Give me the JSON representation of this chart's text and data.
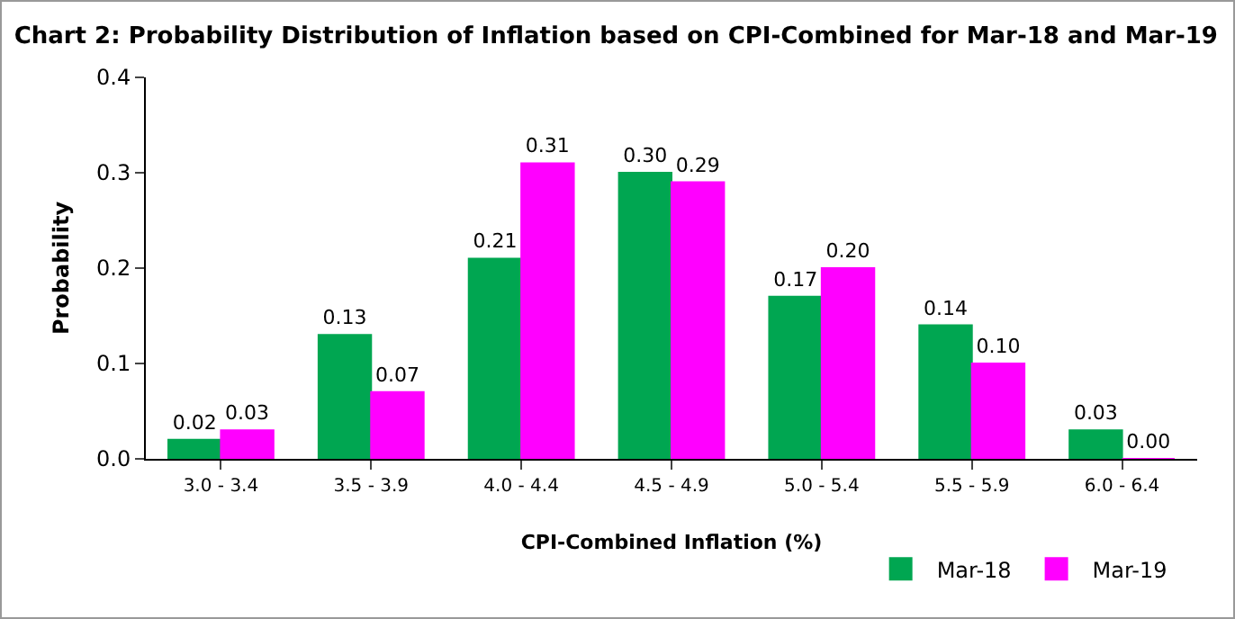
{
  "chart_data": {
    "type": "bar",
    "title": "Chart 2: Probability Distribution of Inflation based on CPI-Combined for Mar-18 and Mar-19",
    "xlabel": "CPI-Combined Inflation (%)",
    "ylabel": "Probability",
    "categories": [
      "3.0 - 3.4",
      "3.5 - 3.9",
      "4.0 - 4.4",
      "4.5 - 4.9",
      "5.0 - 5.4",
      "5.5 - 5.9",
      "6.0 - 6.4"
    ],
    "series": [
      {
        "name": "Mar-18",
        "color": "#00a651",
        "values": [
          0.02,
          0.13,
          0.21,
          0.3,
          0.17,
          0.14,
          0.03
        ],
        "value_labels": [
          "0.02",
          "0.13",
          "0.21",
          "0.30",
          "0.17",
          "0.14",
          "0.03"
        ]
      },
      {
        "name": "Mar-19",
        "color": "#ff00ff",
        "values": [
          0.03,
          0.07,
          0.31,
          0.29,
          0.2,
          0.1,
          0.0
        ],
        "value_labels": [
          "0.03",
          "0.07",
          "0.31",
          "0.29",
          "0.20",
          "0.10",
          "0.00"
        ]
      }
    ],
    "ylim": [
      0,
      0.4
    ],
    "yticks": [
      {
        "value": 0,
        "label": "0.0"
      },
      {
        "value": 0.1,
        "label": "0.1"
      },
      {
        "value": 0.2,
        "label": "0.2"
      },
      {
        "value": 0.3,
        "label": "0.3"
      },
      {
        "value": 0.4,
        "label": "0.4"
      }
    ],
    "grid": false,
    "legend": "bottom right"
  }
}
